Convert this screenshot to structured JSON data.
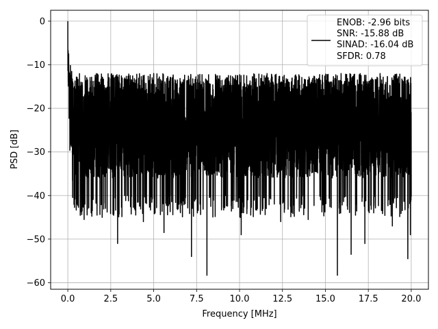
{
  "chart_data": {
    "type": "line",
    "xlabel": "Frequency [MHz]",
    "ylabel": "PSD [dB]",
    "xlim": [
      -1.0,
      21.0
    ],
    "ylim": [
      -61.5,
      2.5
    ],
    "grid": true,
    "legend_position": "top-right",
    "xticks": [
      0.0,
      2.5,
      5.0,
      7.5,
      10.0,
      12.5,
      15.0,
      17.5,
      20.0
    ],
    "xtick_labels": [
      "0.0",
      "2.5",
      "5.0",
      "7.5",
      "10.0",
      "12.5",
      "15.0",
      "17.5",
      "20.0"
    ],
    "yticks": [
      0,
      -10,
      -20,
      -30,
      -40,
      -50,
      -60
    ],
    "ytick_labels": [
      "0",
      "−10",
      "−20",
      "−30",
      "−40",
      "−50",
      "−60"
    ],
    "series": [
      {
        "color": "#000000",
        "x_range": [
          0.0,
          20.0
        ],
        "points": 4000,
        "peak": {
          "x": 0.0,
          "y": 0.0
        },
        "noise_floor_mean": -24,
        "upper_envelope_approx": -13,
        "lower_envelope_approx": -40,
        "deep_nulls": [
          {
            "x": 0.95,
            "y": -45.5
          },
          {
            "x": 1.7,
            "y": -44.5
          },
          {
            "x": 2.0,
            "y": -45
          },
          {
            "x": 2.9,
            "y": -51
          },
          {
            "x": 4.4,
            "y": -46
          },
          {
            "x": 5.6,
            "y": -48.5
          },
          {
            "x": 7.2,
            "y": -54
          },
          {
            "x": 8.1,
            "y": -58.3
          },
          {
            "x": 10.1,
            "y": -49
          },
          {
            "x": 12.4,
            "y": -46
          },
          {
            "x": 14.0,
            "y": -45.5
          },
          {
            "x": 15.7,
            "y": -58.3
          },
          {
            "x": 16.5,
            "y": -53.5
          },
          {
            "x": 17.3,
            "y": -51
          },
          {
            "x": 18.9,
            "y": -47
          },
          {
            "x": 19.8,
            "y": -54.5
          },
          {
            "x": 19.95,
            "y": -49
          }
        ]
      }
    ],
    "legend": {
      "lines": [
        "ENOB: -2.96 bits",
        "SNR: -15.88 dB",
        "SINAD: -16.04 dB",
        "SFDR: 0.78"
      ]
    }
  }
}
